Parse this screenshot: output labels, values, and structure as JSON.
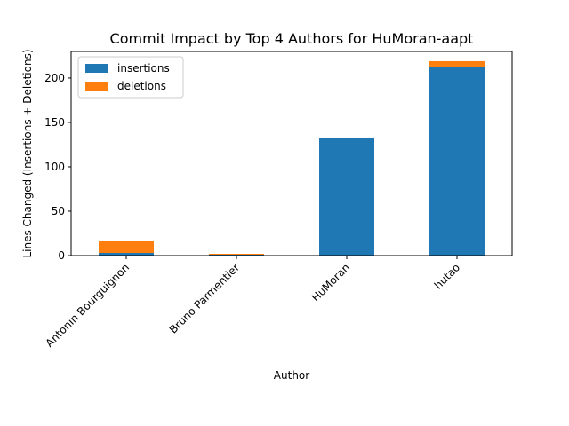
{
  "chart_data": {
    "type": "bar",
    "stacked": true,
    "title": "Commit Impact by Top 4 Authors for HuMoran-aapt",
    "xlabel": "Author",
    "ylabel": "Lines Changed (Insertions + Deletions)",
    "categories": [
      "Antonin Bourguignon",
      "Bruno Parmentier",
      "HuMoran",
      "hutao"
    ],
    "series": [
      {
        "name": "insertions",
        "color": "#1f77b4",
        "values": [
          3,
          1,
          133,
          212
        ]
      },
      {
        "name": "deletions",
        "color": "#ff7f0e",
        "values": [
          14,
          1,
          0,
          7
        ]
      }
    ],
    "ylim": [
      0,
      229.95
    ],
    "yticks": [
      0,
      50,
      100,
      150,
      200
    ],
    "legend_position": "top-left",
    "grid": false
  }
}
